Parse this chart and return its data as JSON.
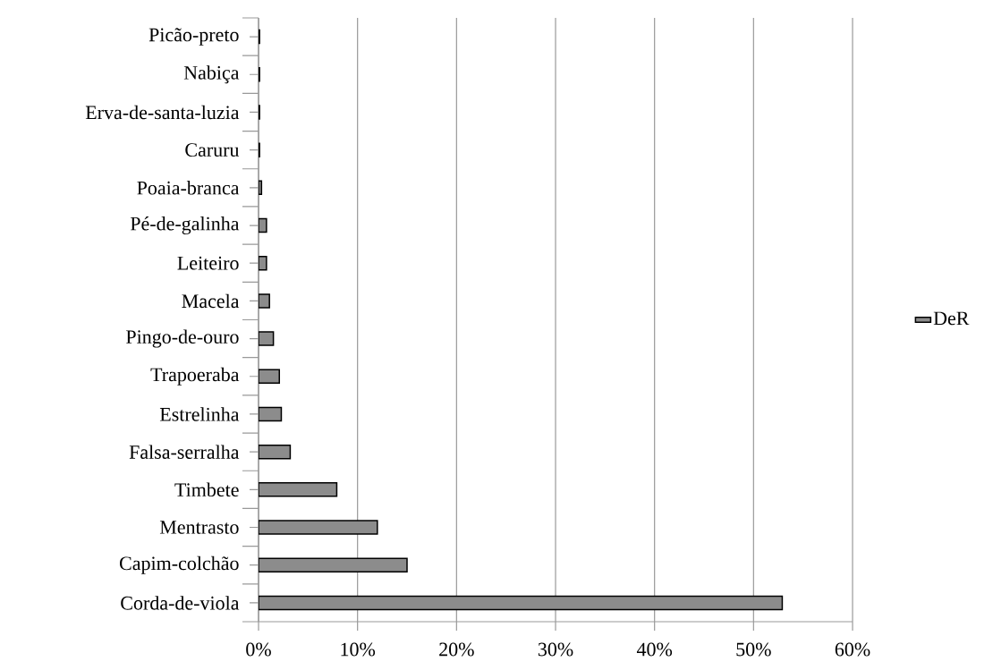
{
  "chart_data": {
    "type": "bar",
    "orientation": "horizontal",
    "categories": [
      "Picão-preto",
      "Nabiça",
      "Erva-de-santa-luzia",
      "Caruru",
      "Poaia-branca",
      "Pé-de-galinha",
      "Leiteiro",
      "Macela",
      "Pingo-de-ouro",
      "Trapoeraba",
      "Estrelinha",
      "Falsa-serralha",
      "Timbete",
      "Mentrasto",
      "Capim-colchão",
      "Corda-de-viola"
    ],
    "series": [
      {
        "name": "DeR",
        "color": "#8c8c8c",
        "values": [
          0.1,
          0.1,
          0.1,
          0.1,
          0.3,
          0.8,
          0.8,
          1.1,
          1.5,
          2.1,
          2.3,
          3.2,
          7.9,
          12.0,
          15.0,
          52.9
        ]
      }
    ],
    "xlim": [
      0,
      60
    ],
    "xticks": [
      {
        "value": 0,
        "label": "0%"
      },
      {
        "value": 10,
        "label": "10%"
      },
      {
        "value": 20,
        "label": "20%"
      },
      {
        "value": 30,
        "label": "30%"
      },
      {
        "value": 40,
        "label": "40%"
      },
      {
        "value": 50,
        "label": "50%"
      },
      {
        "value": 60,
        "label": "60%"
      }
    ],
    "grid": "x",
    "legend": "right"
  }
}
